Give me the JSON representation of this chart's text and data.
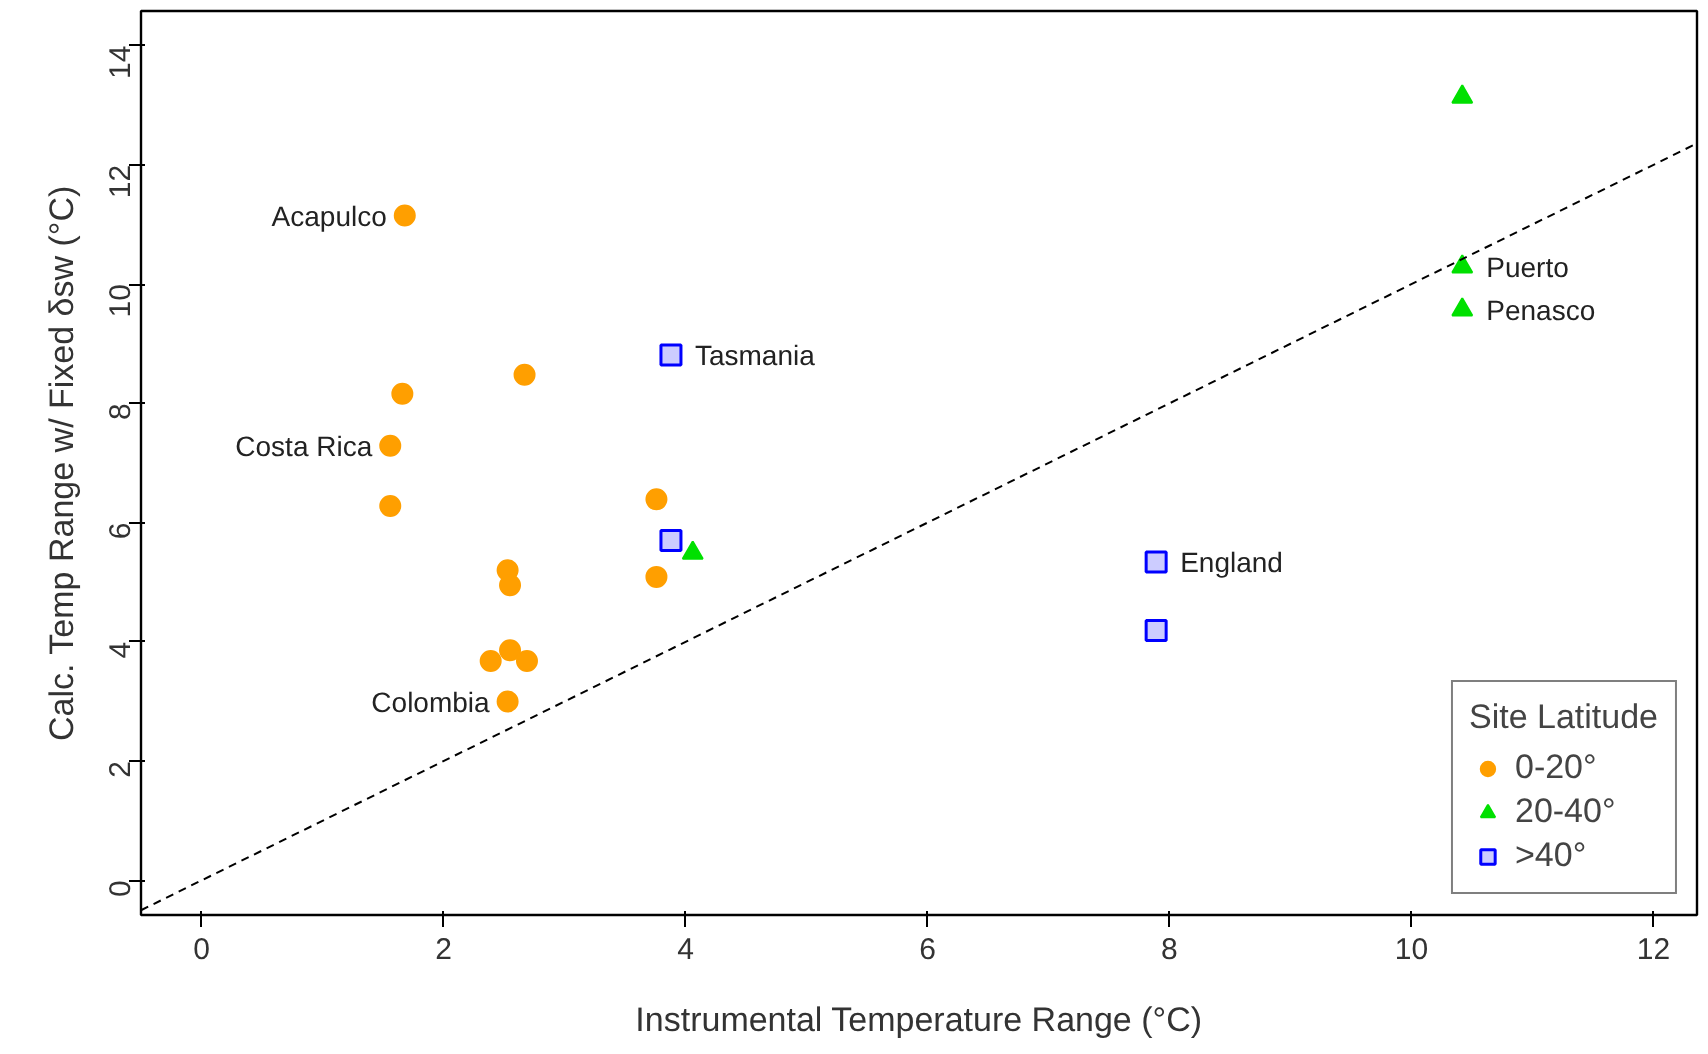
{
  "chart_data": {
    "type": "scatter",
    "xlabel": "Instrumental Temperature Range (°C)",
    "ylabel": "Calc. Temp Range w/ Fixed δsw (°C)",
    "legend_title": "Site Latitude",
    "legend": "bottom right",
    "grid": false,
    "xlim": [
      -0.5,
      12.36
    ],
    "ylim": [
      -0.58,
      14.58
    ],
    "xticks": [
      0,
      2,
      4,
      6,
      8,
      10,
      12
    ],
    "yticks": [
      0,
      2,
      4,
      6,
      8,
      10,
      12,
      14
    ],
    "series": [
      {
        "name": "0-20°",
        "color": "#ff9f00",
        "marker": "circle",
        "x": [
          1.68,
          1.66,
          2.67,
          1.56,
          1.56,
          3.76,
          3.76,
          2.53,
          2.55,
          2.39,
          2.55,
          2.69,
          2.53
        ],
        "values": [
          11.15,
          8.16,
          8.48,
          7.29,
          6.28,
          6.39,
          5.09,
          5.2,
          4.95,
          3.68,
          3.86,
          3.68,
          3.0
        ]
      },
      {
        "name": "20-40°",
        "color": "#00e000",
        "marker": "triangle",
        "x": [
          4.06,
          10.42,
          10.42,
          10.42
        ],
        "values": [
          5.49,
          13.14,
          10.29,
          9.57
        ]
      },
      {
        "name": ">40°",
        "color": "#0000ff",
        "marker": "square",
        "x": [
          3.88,
          3.88,
          7.89,
          7.89
        ],
        "values": [
          8.81,
          5.7,
          5.34,
          4.19
        ]
      },
      {
        "type": "line",
        "line_style": "dashed",
        "color": "#000000",
        "x": [
          -0.5,
          12.36
        ],
        "values": [
          -0.5,
          12.36
        ]
      }
    ],
    "annotations": [
      {
        "text": "Acapulco",
        "x": 1.68,
        "y": 11.15
      },
      {
        "text": "Costa Rica",
        "x": 1.56,
        "y": 7.29
      },
      {
        "text": "Colombia",
        "x": 2.53,
        "y": 3.0
      },
      {
        "text": "Tasmania",
        "x": 3.88,
        "y": 8.81
      },
      {
        "text": "England",
        "x": 7.89,
        "y": 5.34
      },
      {
        "text": "Puerto",
        "x": 10.42,
        "y": 10.29
      },
      {
        "text": "Penasco",
        "x": 10.42,
        "y": 9.57
      }
    ]
  }
}
